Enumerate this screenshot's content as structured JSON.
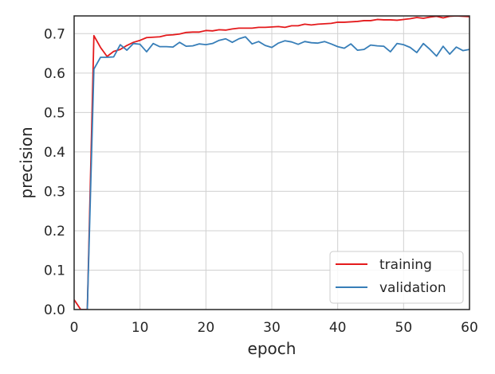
{
  "chart_data": {
    "type": "line",
    "title": "",
    "xlabel": "epoch",
    "ylabel": "precision",
    "xlim": [
      0,
      60
    ],
    "ylim": [
      0,
      0.745
    ],
    "xticks": [
      0,
      10,
      20,
      30,
      40,
      50,
      60
    ],
    "yticks": [
      0.0,
      0.1,
      0.2,
      0.3,
      0.4,
      0.5,
      0.6,
      0.7
    ],
    "xtick_labels": [
      "0",
      "10",
      "20",
      "30",
      "40",
      "50",
      "60"
    ],
    "ytick_labels": [
      "0.0",
      "0.1",
      "0.2",
      "0.3",
      "0.4",
      "0.5",
      "0.6",
      "0.7"
    ],
    "grid": true,
    "legend_position": "lower-right",
    "x": [
      0,
      1,
      2,
      3,
      4,
      5,
      6,
      7,
      8,
      9,
      10,
      11,
      12,
      13,
      14,
      15,
      16,
      17,
      18,
      19,
      20,
      21,
      22,
      23,
      24,
      25,
      26,
      27,
      28,
      29,
      30,
      31,
      32,
      33,
      34,
      35,
      36,
      37,
      38,
      39,
      40,
      41,
      42,
      43,
      44,
      45,
      46,
      47,
      48,
      49,
      50,
      51,
      52,
      53,
      54,
      55,
      56,
      57,
      58,
      59,
      60
    ],
    "series": [
      {
        "name": "training",
        "color": "#e41a1c",
        "values": [
          0.025,
          0.0,
          0.0,
          0.695,
          0.665,
          0.642,
          0.655,
          0.66,
          0.67,
          0.678,
          0.683,
          0.69,
          0.691,
          0.692,
          0.696,
          0.697,
          0.699,
          0.703,
          0.704,
          0.704,
          0.708,
          0.707,
          0.71,
          0.709,
          0.712,
          0.714,
          0.714,
          0.714,
          0.716,
          0.716,
          0.717,
          0.718,
          0.716,
          0.72,
          0.72,
          0.724,
          0.722,
          0.724,
          0.725,
          0.726,
          0.729,
          0.729,
          0.73,
          0.731,
          0.733,
          0.733,
          0.736,
          0.735,
          0.735,
          0.734,
          0.736,
          0.738,
          0.741,
          0.739,
          0.742,
          0.744,
          0.74,
          0.744,
          0.745,
          0.744,
          0.743
        ]
      },
      {
        "name": "validation",
        "color": "#377eb8",
        "values": [
          null,
          null,
          0.0,
          0.61,
          0.64,
          0.64,
          0.641,
          0.672,
          0.658,
          0.675,
          0.673,
          0.654,
          0.675,
          0.667,
          0.667,
          0.666,
          0.678,
          0.668,
          0.669,
          0.674,
          0.672,
          0.675,
          0.683,
          0.687,
          0.678,
          0.687,
          0.692,
          0.674,
          0.68,
          0.67,
          0.665,
          0.676,
          0.682,
          0.679,
          0.673,
          0.68,
          0.677,
          0.676,
          0.68,
          0.674,
          0.667,
          0.663,
          0.674,
          0.658,
          0.66,
          0.671,
          0.669,
          0.668,
          0.654,
          0.675,
          0.672,
          0.665,
          0.652,
          0.675,
          0.66,
          0.643,
          0.668,
          0.648,
          0.666,
          0.657,
          0.66
        ]
      }
    ]
  }
}
